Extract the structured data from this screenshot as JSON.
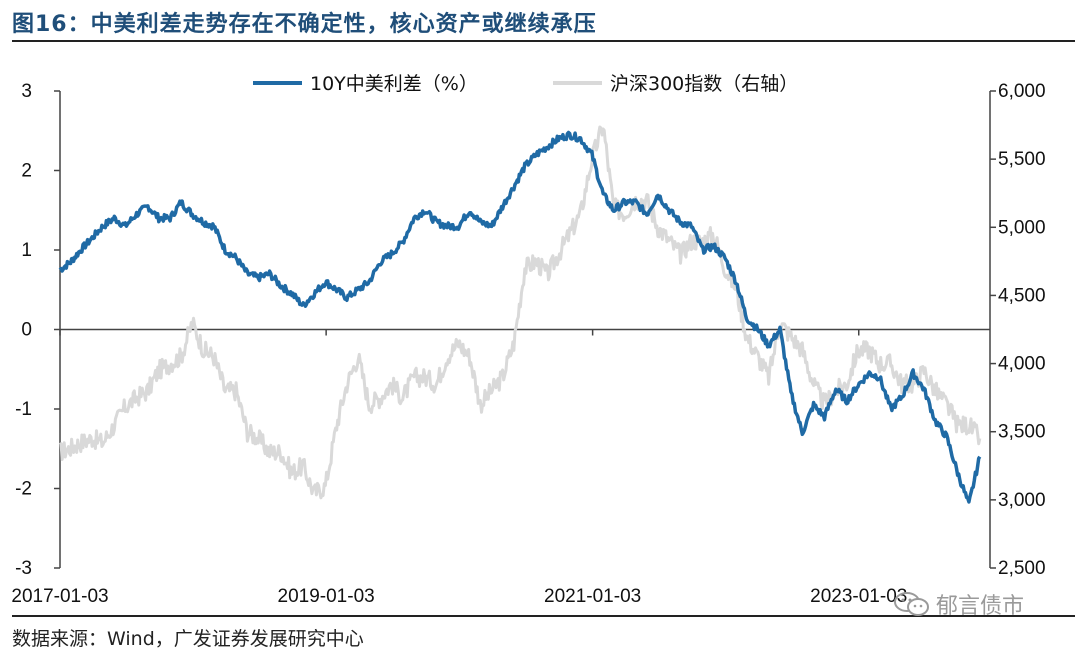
{
  "header": {
    "title": "图16：中美利差走势存在不确定性，核心资产或继续承压"
  },
  "footer": {
    "source": "数据来源：Wind，广发证券发展研究中心",
    "watermark": "郁言债市"
  },
  "colors": {
    "spread": "#1f6aa5",
    "csi300": "#d9d9d9",
    "title": "#1f4e79"
  },
  "chart_data": {
    "type": "line",
    "legend_position": "top-center",
    "grid": false,
    "x_ticks": [
      "2017-01-03",
      "2019-01-03",
      "2021-01-03",
      "2023-01-03"
    ],
    "x_range": [
      "2017-01-03",
      "2023-12-29"
    ],
    "y_left": {
      "range": [
        -3,
        3
      ],
      "ticks": [
        "3",
        "2",
        "1",
        "0",
        "-1",
        "-2",
        "-3"
      ]
    },
    "y_right": {
      "range": [
        2500,
        6000
      ],
      "ticks": [
        "6,000",
        "5,500",
        "5,000",
        "4,500",
        "4,000",
        "3,500",
        "3,000",
        "2,500"
      ]
    },
    "series": [
      {
        "name": "10Y中美利差（%）",
        "axis": "left",
        "x": [
          "2017-01-03",
          "2017-02-01",
          "2017-03-01",
          "2017-04-01",
          "2017-05-01",
          "2017-06-01",
          "2017-07-01",
          "2017-08-01",
          "2017-09-01",
          "2017-10-01",
          "2017-11-01",
          "2017-12-01",
          "2018-01-01",
          "2018-02-01",
          "2018-03-01",
          "2018-04-01",
          "2018-05-01",
          "2018-06-01",
          "2018-07-01",
          "2018-08-01",
          "2018-09-01",
          "2018-10-01",
          "2018-11-01",
          "2018-12-01",
          "2019-01-01",
          "2019-02-01",
          "2019-03-01",
          "2019-04-01",
          "2019-05-01",
          "2019-06-01",
          "2019-07-01",
          "2019-08-01",
          "2019-09-01",
          "2019-10-01",
          "2019-11-01",
          "2019-12-01",
          "2020-01-01",
          "2020-02-01",
          "2020-03-01",
          "2020-04-01",
          "2020-05-01",
          "2020-06-01",
          "2020-07-01",
          "2020-08-01",
          "2020-09-01",
          "2020-10-01",
          "2020-11-01",
          "2020-12-01",
          "2021-01-01",
          "2021-02-01",
          "2021-03-01",
          "2021-04-01",
          "2021-05-01",
          "2021-06-01",
          "2021-07-01",
          "2021-08-01",
          "2021-09-01",
          "2021-10-01",
          "2021-11-01",
          "2021-12-01",
          "2022-01-01",
          "2022-02-01",
          "2022-03-01",
          "2022-04-01",
          "2022-05-01",
          "2022-06-01",
          "2022-07-01",
          "2022-08-01",
          "2022-09-01",
          "2022-10-01",
          "2022-11-01",
          "2022-12-01",
          "2023-01-01",
          "2023-02-01",
          "2023-03-01",
          "2023-04-01",
          "2023-05-01",
          "2023-06-01",
          "2023-07-01",
          "2023-08-01",
          "2023-09-01",
          "2023-10-01",
          "2023-11-01",
          "2023-12-01"
        ],
        "values": [
          0.75,
          0.85,
          1.0,
          1.15,
          1.3,
          1.4,
          1.3,
          1.45,
          1.55,
          1.4,
          1.4,
          1.6,
          1.45,
          1.35,
          1.3,
          1.0,
          0.9,
          0.7,
          0.65,
          0.7,
          0.55,
          0.45,
          0.3,
          0.45,
          0.6,
          0.5,
          0.4,
          0.5,
          0.6,
          0.85,
          0.95,
          1.1,
          1.4,
          1.5,
          1.35,
          1.3,
          1.3,
          1.5,
          1.35,
          1.3,
          1.55,
          1.8,
          2.05,
          2.2,
          2.3,
          2.4,
          2.45,
          2.4,
          2.2,
          1.7,
          1.5,
          1.6,
          1.6,
          1.45,
          1.7,
          1.5,
          1.35,
          1.3,
          1.0,
          1.05,
          0.9,
          0.6,
          0.15,
          0.0,
          -0.2,
          0.0,
          -0.8,
          -1.3,
          -0.95,
          -1.1,
          -0.75,
          -0.9,
          -0.7,
          -0.55,
          -0.6,
          -1.0,
          -0.85,
          -0.55,
          -0.75,
          -1.15,
          -1.35,
          -1.8,
          -2.2,
          -1.6
        ]
      },
      {
        "name": "沪深300指数（右轴）",
        "axis": "right",
        "x": [
          "2017-01-03",
          "2017-02-01",
          "2017-03-01",
          "2017-04-01",
          "2017-05-01",
          "2017-06-01",
          "2017-07-01",
          "2017-08-01",
          "2017-09-01",
          "2017-10-01",
          "2017-11-01",
          "2017-12-01",
          "2018-01-01",
          "2018-02-01",
          "2018-03-01",
          "2018-04-01",
          "2018-05-01",
          "2018-06-01",
          "2018-07-01",
          "2018-08-01",
          "2018-09-01",
          "2018-10-01",
          "2018-11-01",
          "2018-12-01",
          "2019-01-01",
          "2019-02-01",
          "2019-03-01",
          "2019-04-01",
          "2019-05-01",
          "2019-06-01",
          "2019-07-01",
          "2019-08-01",
          "2019-09-01",
          "2019-10-01",
          "2019-11-01",
          "2019-12-01",
          "2020-01-01",
          "2020-02-01",
          "2020-03-01",
          "2020-04-01",
          "2020-05-01",
          "2020-06-01",
          "2020-07-01",
          "2020-08-01",
          "2020-09-01",
          "2020-10-01",
          "2020-11-01",
          "2020-12-01",
          "2021-01-01",
          "2021-02-01",
          "2021-03-01",
          "2021-04-01",
          "2021-05-01",
          "2021-06-01",
          "2021-07-01",
          "2021-08-01",
          "2021-09-01",
          "2021-10-01",
          "2021-11-01",
          "2021-12-01",
          "2022-01-01",
          "2022-02-01",
          "2022-03-01",
          "2022-04-01",
          "2022-05-01",
          "2022-06-01",
          "2022-07-01",
          "2022-08-01",
          "2022-09-01",
          "2022-10-01",
          "2022-11-01",
          "2022-12-01",
          "2023-01-01",
          "2023-02-01",
          "2023-03-01",
          "2023-04-01",
          "2023-05-01",
          "2023-06-01",
          "2023-07-01",
          "2023-08-01",
          "2023-09-01",
          "2023-10-01",
          "2023-11-01",
          "2023-12-01"
        ],
        "values": [
          3350,
          3380,
          3420,
          3450,
          3420,
          3550,
          3680,
          3750,
          3800,
          3950,
          4000,
          4050,
          4300,
          4100,
          4050,
          3800,
          3800,
          3500,
          3450,
          3350,
          3350,
          3200,
          3250,
          3050,
          3100,
          3550,
          3850,
          4050,
          3700,
          3750,
          3850,
          3750,
          3900,
          3900,
          3850,
          4050,
          4150,
          4050,
          3700,
          3800,
          3900,
          4150,
          4700,
          4750,
          4650,
          4800,
          4950,
          5100,
          5500,
          5750,
          5150,
          5100,
          5200,
          5200,
          5000,
          4900,
          4800,
          4900,
          4900,
          4950,
          4700,
          4550,
          4200,
          4050,
          3900,
          4300,
          4200,
          4100,
          3850,
          3700,
          3800,
          3850,
          4100,
          4100,
          4000,
          4000,
          3850,
          3850,
          3950,
          3800,
          3700,
          3550,
          3550,
          3450
        ]
      }
    ]
  }
}
